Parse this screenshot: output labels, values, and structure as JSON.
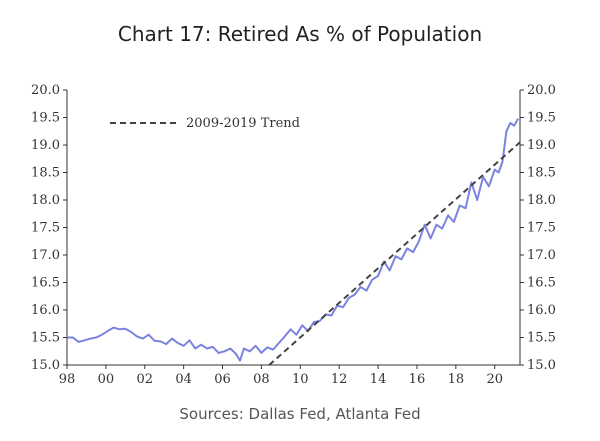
{
  "chart_data": {
    "type": "line",
    "title": "Chart 17: Retired As % of Population",
    "source": "Sources: Dallas Fed, Atlanta Fed",
    "xlabel": "",
    "ylabel": "",
    "xlim": [
      1998,
      2021.3
    ],
    "ylim": [
      15.0,
      20.0
    ],
    "x_tick_values": [
      1998,
      2000,
      2002,
      2004,
      2006,
      2008,
      2010,
      2012,
      2014,
      2016,
      2018,
      2020
    ],
    "x_tick_labels": [
      "98",
      "00",
      "02",
      "04",
      "06",
      "08",
      "10",
      "12",
      "14",
      "16",
      "18",
      "20"
    ],
    "y_tick_values": [
      15.0,
      15.5,
      16.0,
      16.5,
      17.0,
      17.5,
      18.0,
      18.5,
      19.0,
      19.5,
      20.0
    ],
    "y_tick_labels": [
      "15.0",
      "15.5",
      "16.0",
      "16.5",
      "17.0",
      "17.5",
      "18.0",
      "18.5",
      "19.0",
      "19.5",
      "20.0"
    ],
    "legend": [
      {
        "label": "2009-2019 Trend",
        "style": "dashed",
        "color": "#444444"
      }
    ],
    "legend_position": "top-left",
    "series": [
      {
        "name": "Retired As % of Population",
        "color": "#7b83e0",
        "x": [
          1998.0,
          1998.3,
          1998.6,
          1998.9,
          1999.2,
          1999.5,
          1999.8,
          2000.1,
          2000.4,
          2000.7,
          2001.0,
          2001.3,
          2001.6,
          2001.9,
          2002.2,
          2002.5,
          2002.8,
          2003.1,
          2003.4,
          2003.7,
          2004.0,
          2004.3,
          2004.6,
          2004.9,
          2005.2,
          2005.5,
          2005.8,
          2006.1,
          2006.4,
          2006.7,
          2006.9,
          2007.1,
          2007.4,
          2007.7,
          2008.0,
          2008.3,
          2008.6,
          2008.9,
          2009.2,
          2009.5,
          2009.8,
          2010.1,
          2010.4,
          2010.7,
          2011.0,
          2011.3,
          2011.6,
          2011.9,
          2012.2,
          2012.5,
          2012.8,
          2013.1,
          2013.4,
          2013.7,
          2014.0,
          2014.3,
          2014.6,
          2014.9,
          2015.2,
          2015.5,
          2015.8,
          2016.1,
          2016.4,
          2016.7,
          2017.0,
          2017.3,
          2017.6,
          2017.9,
          2018.2,
          2018.5,
          2018.8,
          2019.1,
          2019.4,
          2019.7,
          2020.0,
          2020.2,
          2020.4,
          2020.6,
          2020.8,
          2021.0,
          2021.2
        ],
        "values": [
          15.5,
          15.5,
          15.42,
          15.45,
          15.48,
          15.5,
          15.55,
          15.62,
          15.68,
          15.65,
          15.66,
          15.6,
          15.52,
          15.48,
          15.55,
          15.44,
          15.43,
          15.38,
          15.48,
          15.4,
          15.35,
          15.45,
          15.3,
          15.37,
          15.3,
          15.33,
          15.22,
          15.25,
          15.3,
          15.2,
          15.08,
          15.3,
          15.25,
          15.35,
          15.22,
          15.32,
          15.28,
          15.4,
          15.52,
          15.65,
          15.55,
          15.72,
          15.62,
          15.78,
          15.8,
          15.92,
          15.9,
          16.08,
          16.05,
          16.22,
          16.28,
          16.42,
          16.35,
          16.55,
          16.62,
          16.88,
          16.72,
          16.98,
          16.92,
          17.12,
          17.05,
          17.25,
          17.55,
          17.3,
          17.55,
          17.48,
          17.72,
          17.6,
          17.9,
          17.85,
          18.32,
          18.0,
          18.42,
          18.25,
          18.55,
          18.5,
          18.7,
          19.25,
          19.4,
          19.35,
          19.48
        ]
      },
      {
        "name": "2009-2019 Trend",
        "color": "#444444",
        "style": "dashed",
        "x": [
          2008.4,
          2021.3
        ],
        "values": [
          15.0,
          19.05
        ]
      }
    ]
  }
}
